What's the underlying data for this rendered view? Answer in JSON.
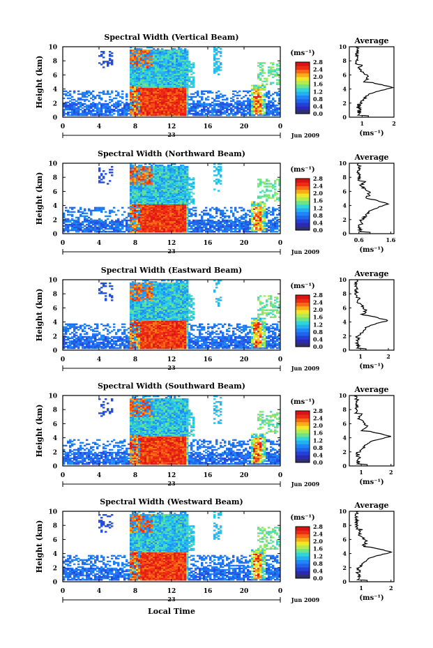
{
  "chart_data": {
    "type": "heatmap",
    "xlabel": "Local Time",
    "x_ticks": [
      "0",
      "4",
      "8",
      "12",
      "16",
      "20",
      "0"
    ],
    "y_ticks": [
      "0",
      "2",
      "4",
      "6",
      "8",
      "10"
    ],
    "ylabel": "Height (km)",
    "xlim": [
      0,
      24
    ],
    "ylim": [
      0,
      10
    ],
    "day_label": "23",
    "month_label": "Jun 2009",
    "colorbar": {
      "unit_label": "(ms⁻¹)",
      "ticks": [
        "0.0",
        "0.4",
        "0.8",
        "1.2",
        "1.6",
        "2.0",
        "2.4",
        "2.8"
      ],
      "range": [
        0,
        2.8
      ]
    },
    "average_title": "Average",
    "average_unit": "(ms⁻¹)",
    "panels": [
      {
        "title": "Spectral Width (Vertical Beam)",
        "avg_ticks": [
          "1",
          "2"
        ],
        "avg_xlim": [
          0.6,
          2.0
        ],
        "avg_peak": 2.0,
        "avg_base": 0.95
      },
      {
        "title": "Spectral Width (Northward Beam)",
        "avg_ticks": [
          "0.6",
          "1.6"
        ],
        "avg_xlim": [
          0.3,
          1.7
        ],
        "avg_peak": 1.55,
        "avg_base": 0.7
      },
      {
        "title": "Spectral Width (Eastward Beam)",
        "avg_ticks": [
          "1",
          "2"
        ],
        "avg_xlim": [
          0.6,
          2.2
        ],
        "avg_peak": 2.0,
        "avg_base": 0.95
      },
      {
        "title": "Spectral Width (Southward Beam)",
        "avg_ticks": [
          "1",
          "2"
        ],
        "avg_xlim": [
          0.6,
          2.1
        ],
        "avg_peak": 2.0,
        "avg_base": 0.95
      },
      {
        "title": "Spectral Width (Westward Beam)",
        "avg_ticks": [
          "1",
          "2"
        ],
        "avg_xlim": [
          0.6,
          2.1
        ],
        "avg_peak": 2.05,
        "avg_base": 0.95
      }
    ]
  }
}
